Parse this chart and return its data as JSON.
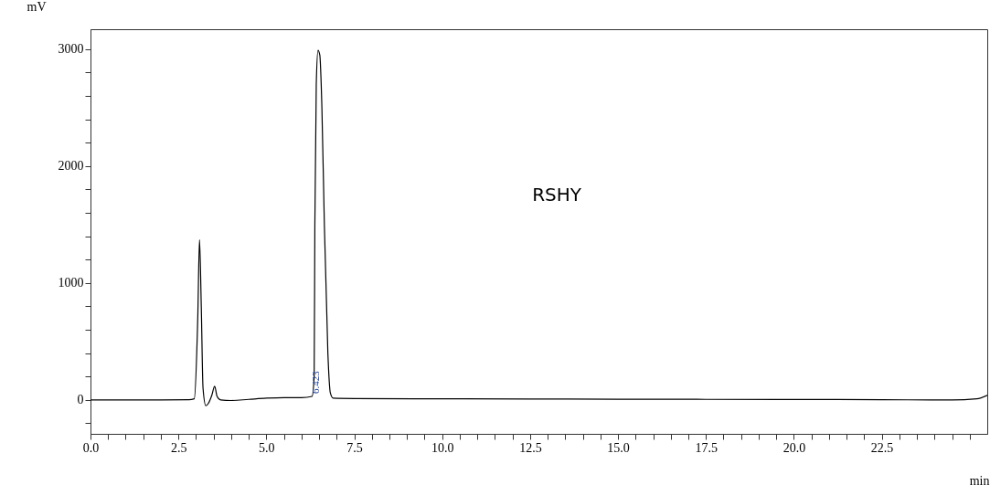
{
  "chart_data": {
    "type": "line",
    "xlabel": "min",
    "ylabel": "mV",
    "x": [
      0,
      1,
      2,
      2.8,
      2.95,
      3.05,
      3.1,
      3.15,
      3.2,
      3.28,
      3.35,
      3.45,
      3.53,
      3.6,
      3.7,
      4.0,
      4.5,
      5.0,
      5.5,
      6.0,
      6.3,
      6.36,
      6.38,
      6.42,
      6.47,
      6.52,
      6.58,
      6.65,
      6.75,
      6.82,
      6.9,
      7.5,
      10,
      12.5,
      15,
      17.5,
      20,
      22.5,
      24.5,
      25.2,
      25.5
    ],
    "series": [
      {
        "color": "#000000",
        "values": [
          0,
          0,
          0,
          2,
          10,
          700,
          1370,
          800,
          100,
          -50,
          -30,
          40,
          117,
          30,
          0,
          -5,
          5,
          15,
          20,
          20,
          30,
          200,
          1500,
          2700,
          2990,
          2950,
          2500,
          1500,
          400,
          60,
          15,
          12,
          10,
          8,
          6,
          5,
          4,
          2,
          0,
          10,
          40
        ]
      }
    ],
    "xlim": [
      0,
      25.5
    ],
    "ylim": [
      -290,
      3170
    ],
    "xticks": [
      {
        "value": 0,
        "label": "0.0"
      },
      {
        "value": 0.5,
        "label": null
      },
      {
        "value": 1,
        "label": null
      },
      {
        "value": 1.5,
        "label": null
      },
      {
        "value": 2,
        "label": null
      },
      2.5,
      {
        "value": 3,
        "label": null
      },
      {
        "value": 3.5,
        "label": null
      },
      {
        "value": 4,
        "label": null
      },
      {
        "value": 4.5,
        "label": null
      },
      {
        "value": 5,
        "label": "5.0"
      },
      {
        "value": 5.5,
        "label": null
      },
      {
        "value": 6,
        "label": null
      },
      {
        "value": 6.5,
        "label": null
      },
      {
        "value": 7,
        "label": null
      },
      7.5,
      {
        "value": 8,
        "label": null
      },
      {
        "value": 8.5,
        "label": null
      },
      {
        "value": 9,
        "label": null
      },
      {
        "value": 9.5,
        "label": null
      },
      {
        "value": 10,
        "label": "10.0"
      },
      {
        "value": 10.5,
        "label": null
      },
      {
        "value": 11,
        "label": null
      },
      {
        "value": 11.5,
        "label": null
      },
      {
        "value": 12,
        "label": null
      },
      12.5,
      {
        "value": 13,
        "label": null
      },
      {
        "value": 13.5,
        "label": null
      },
      {
        "value": 14,
        "label": null
      },
      {
        "value": 14.5,
        "label": null
      },
      {
        "value": 15,
        "label": "15.0"
      },
      {
        "value": 15.5,
        "label": null
      },
      {
        "value": 16,
        "label": null
      },
      {
        "value": 16.5,
        "label": null
      },
      {
        "value": 17,
        "label": null
      },
      17.5,
      {
        "value": 18,
        "label": null
      },
      {
        "value": 18.5,
        "label": null
      },
      {
        "value": 19,
        "label": null
      },
      {
        "value": 19.5,
        "label": null
      },
      {
        "value": 20,
        "label": "20.0"
      },
      {
        "value": 20.5,
        "label": null
      },
      {
        "value": 21,
        "label": null
      },
      {
        "value": 21.5,
        "label": null
      },
      {
        "value": 22,
        "label": null
      },
      22.5,
      {
        "value": 23,
        "label": null
      },
      {
        "value": 23.5,
        "label": null
      },
      {
        "value": 24,
        "label": null
      },
      {
        "value": 24.5,
        "label": null
      },
      {
        "value": 25,
        "label": null
      }
    ],
    "yticks": [
      {
        "value": -200,
        "label": null
      },
      0,
      {
        "value": 200,
        "label": null
      },
      {
        "value": 400,
        "label": null
      },
      {
        "value": 600,
        "label": null
      },
      {
        "value": 800,
        "label": null
      },
      1000,
      {
        "value": 1200,
        "label": null
      },
      {
        "value": 1400,
        "label": null
      },
      {
        "value": 1600,
        "label": null
      },
      {
        "value": 1800,
        "label": null
      },
      2000,
      {
        "value": 2200,
        "label": null
      },
      {
        "value": 2400,
        "label": null
      },
      {
        "value": 2600,
        "label": null
      },
      {
        "value": 2800,
        "label": null
      },
      3000
    ],
    "grid": false,
    "annotations": [
      "RSHY",
      {
        "text": "6.423",
        "x": 6.423,
        "y": 150
      }
    ]
  }
}
